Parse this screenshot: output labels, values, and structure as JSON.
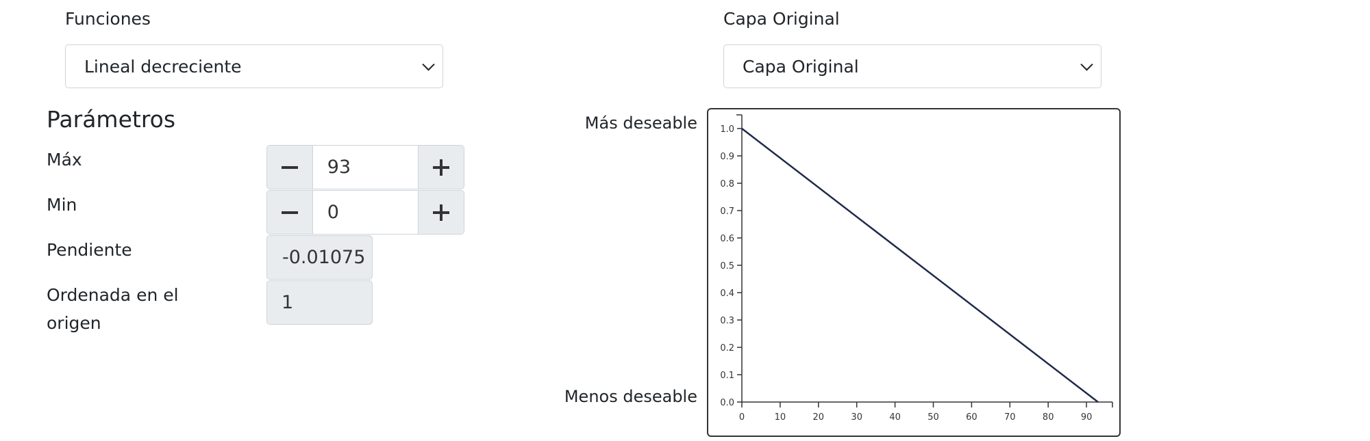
{
  "functions": {
    "label": "Funciones",
    "selected": "Lineal decreciente"
  },
  "layer": {
    "label": "Capa Original",
    "selected": "Capa Original"
  },
  "params": {
    "title": "Parámetros",
    "max_label": "Máx",
    "max_value": "93",
    "min_label": "Min",
    "min_value": "0",
    "slope_label": "Pendiente",
    "slope_value": "-0.01075",
    "intercept_label_line1": "Ordenada en el",
    "intercept_label_line2": "origen",
    "intercept_value": "1"
  },
  "chart_labels": {
    "top": "Más deseable",
    "bottom": "Menos deseable"
  },
  "colors": {
    "line": "#1f2a4a",
    "axis": "#333333"
  },
  "chart_data": {
    "type": "line",
    "x": [
      0,
      93
    ],
    "y": [
      1.0,
      0.0
    ],
    "xlim": [
      0,
      97
    ],
    "ylim": [
      0,
      1.05
    ],
    "xticks": [
      0,
      10,
      20,
      30,
      40,
      50,
      60,
      70,
      80,
      90
    ],
    "yticks": [
      "0.0",
      "0.1",
      "0.2",
      "0.3",
      "0.4",
      "0.5",
      "0.6",
      "0.7",
      "0.8",
      "0.9",
      "1.0"
    ],
    "grid": false
  }
}
